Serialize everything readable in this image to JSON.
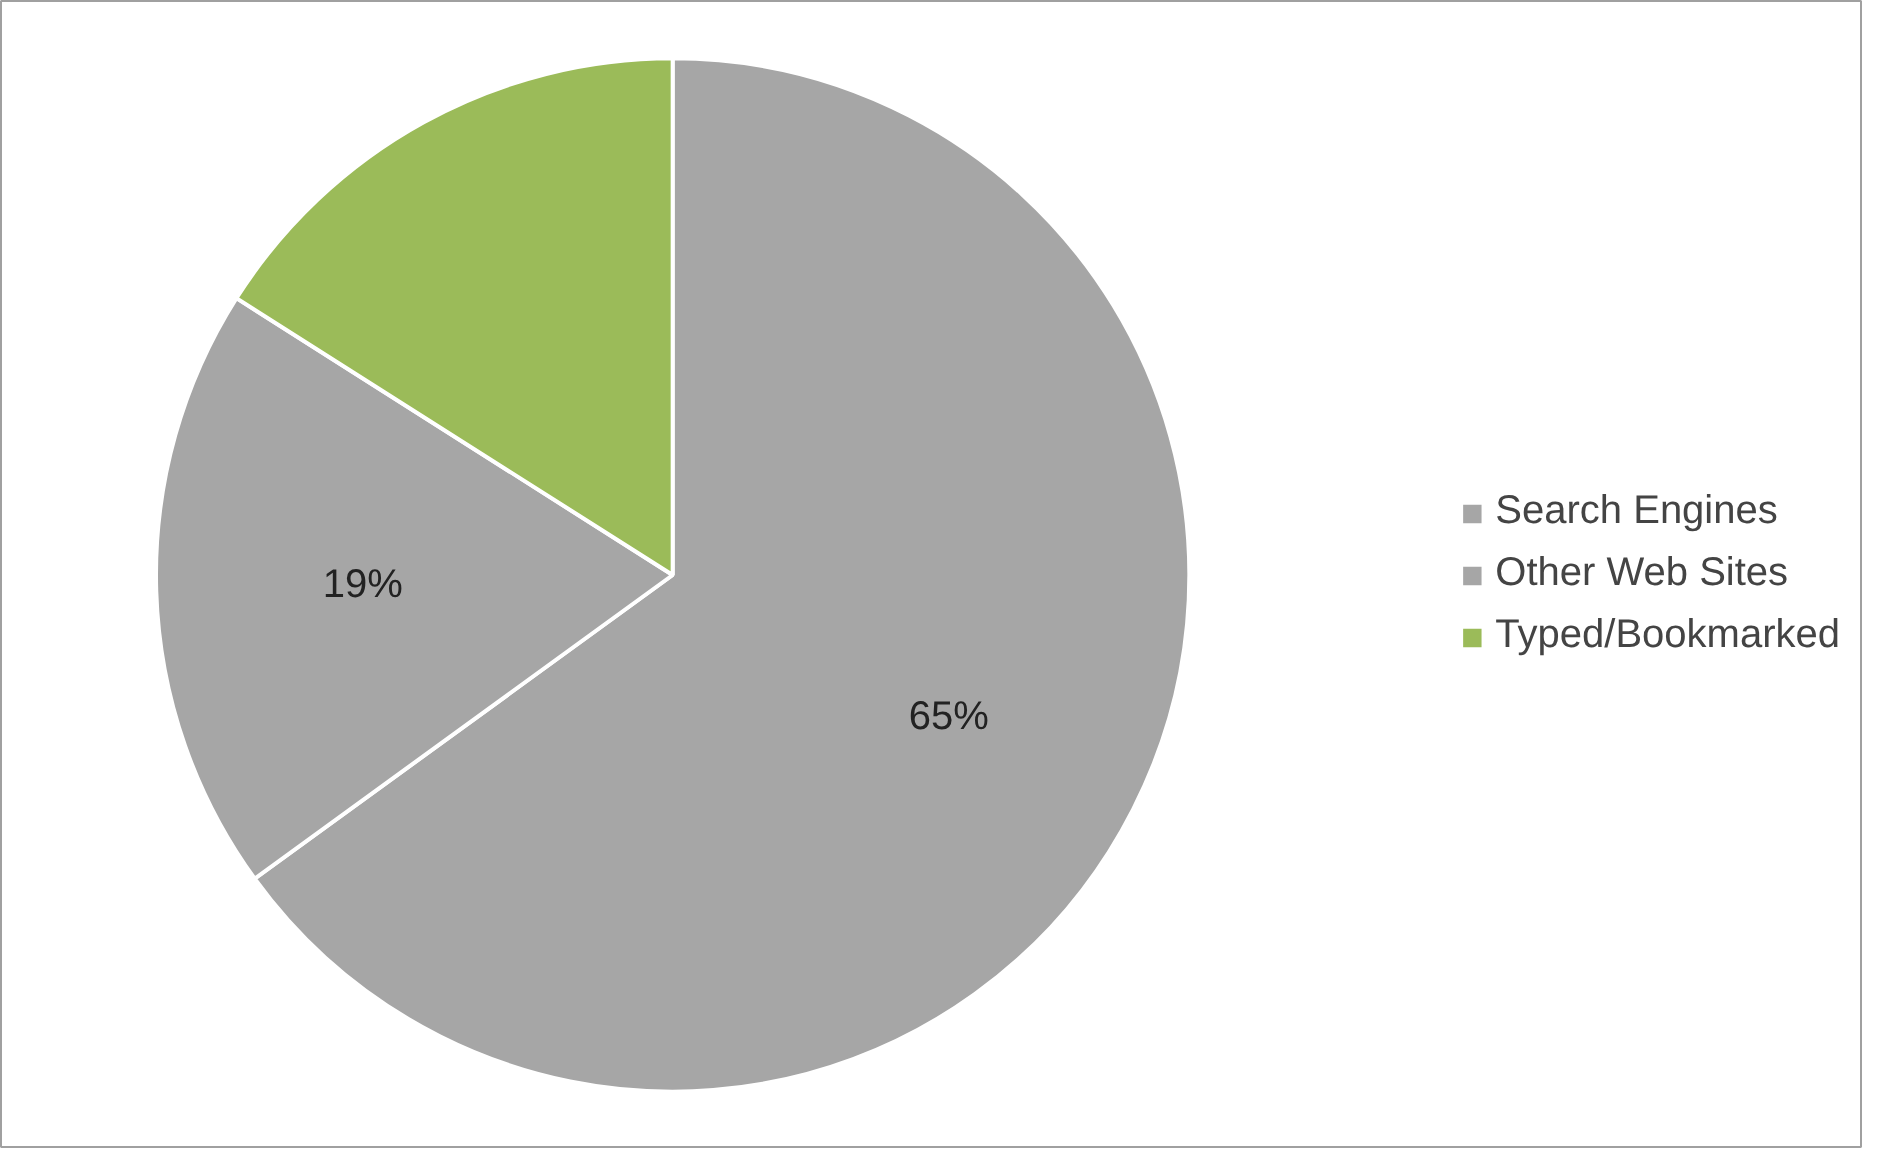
{
  "chart_data": {
    "type": "pie",
    "categories": [
      "Search Engines",
      "Other Web Sites",
      "Typed/Bookmarked"
    ],
    "values": [
      65,
      19,
      16
    ],
    "colors": [
      "#a6a6a6",
      "#a6a6a6",
      "#9bbb59"
    ],
    "value_labels": [
      "65%",
      "19%",
      null
    ],
    "legend": "right"
  }
}
